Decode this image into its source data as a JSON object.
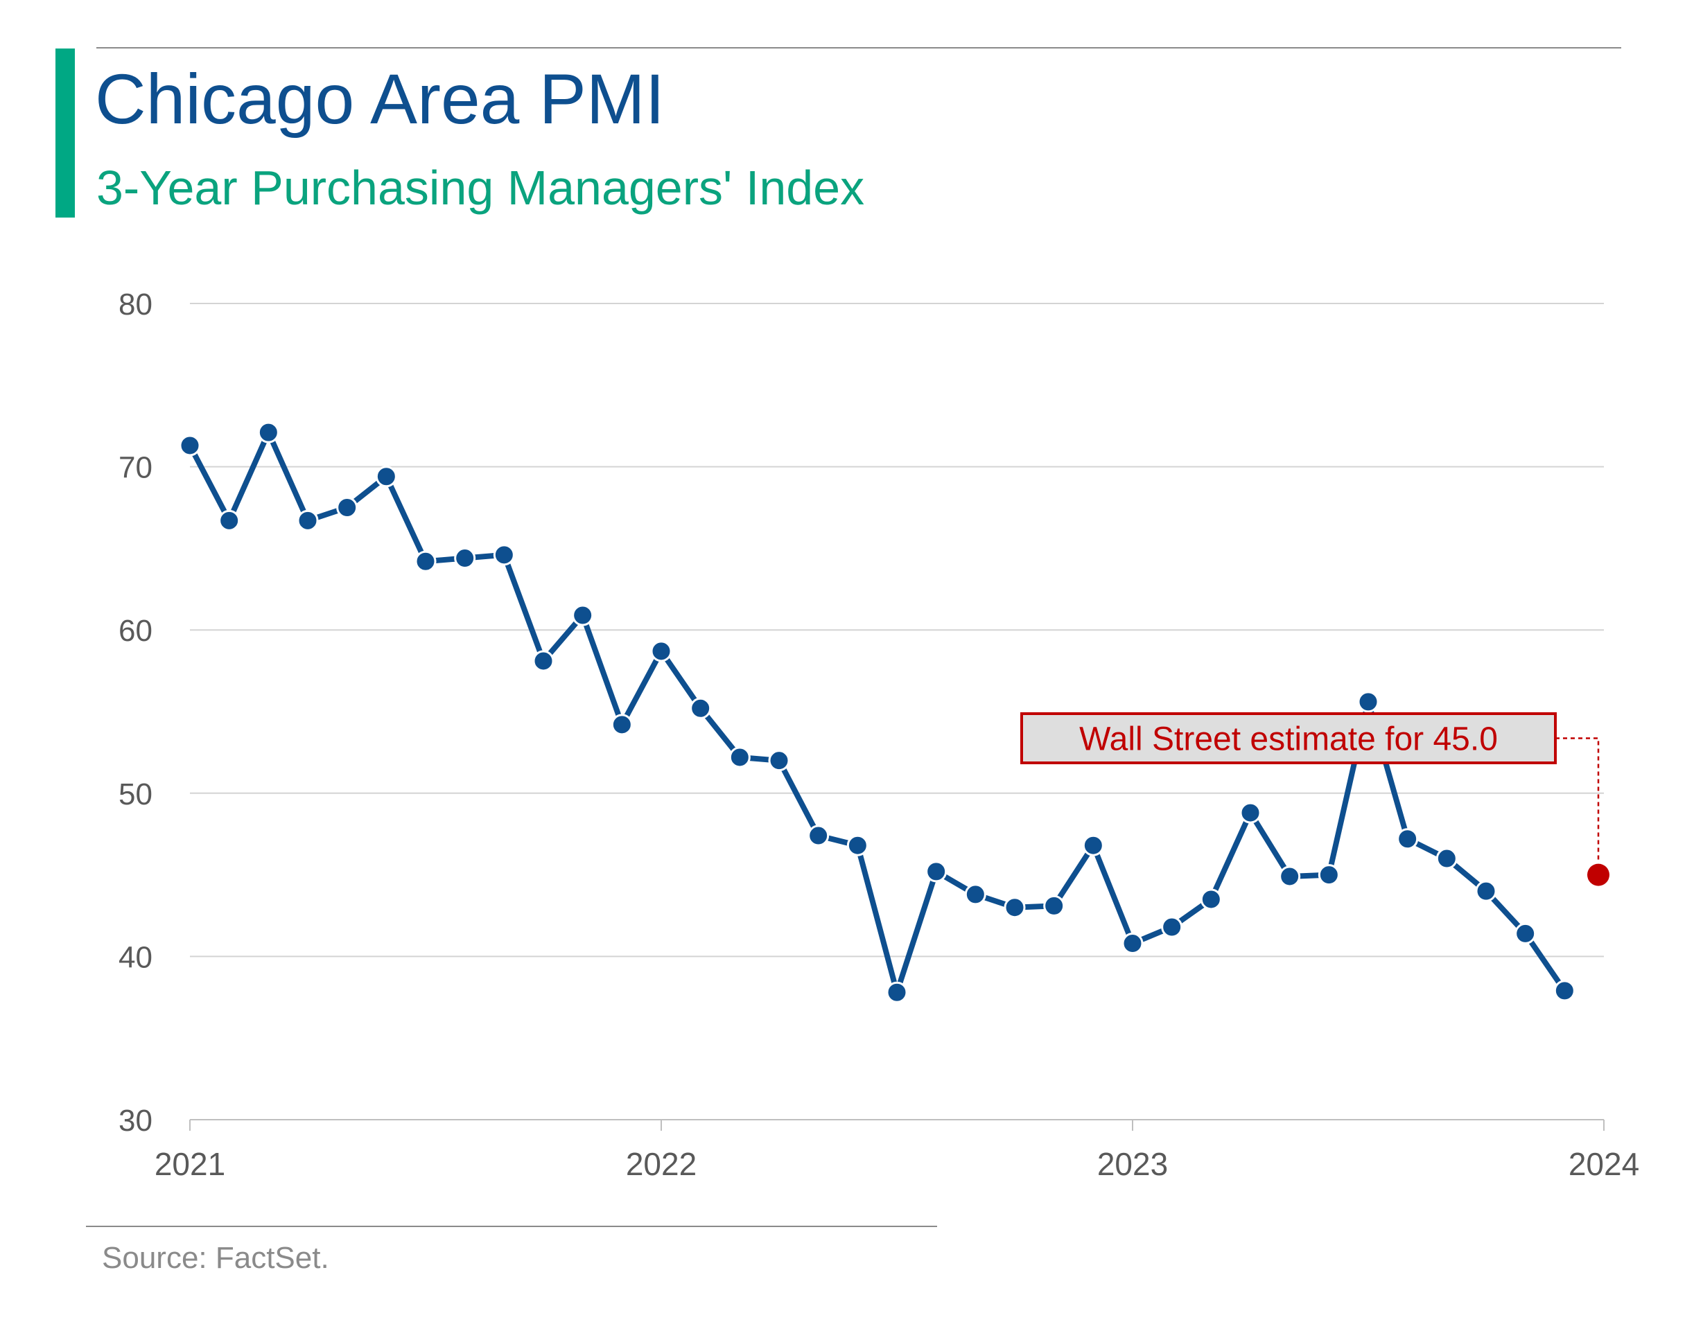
{
  "header": {
    "title": "Chicago Area PMI",
    "subtitle": "3-Year Purchasing Managers' Index"
  },
  "footer": {
    "source": "Source: FactSet."
  },
  "colors": {
    "line": "#0e4f8f",
    "accent": "#00a884",
    "subtitle": "#0aa37e",
    "estimate": "#c00000",
    "grid": "#d4d4d4",
    "axis_text": "#595959"
  },
  "chart_data": {
    "type": "line",
    "title": "Chicago Area PMI",
    "subtitle": "3-Year Purchasing Managers' Index",
    "xlabel": "",
    "ylabel": "",
    "ylim": [
      30,
      80
    ],
    "yticks": [
      30,
      40,
      50,
      60,
      70,
      80
    ],
    "xlim": [
      "2021-01",
      "2024-01"
    ],
    "xticks": [
      "2021",
      "2022",
      "2023",
      "2024"
    ],
    "grid": true,
    "series": [
      {
        "x": [
          "2021-01",
          "2021-02",
          "2021-03",
          "2021-04",
          "2021-05",
          "2021-06",
          "2021-07",
          "2021-08",
          "2021-09",
          "2021-10",
          "2021-11",
          "2021-12",
          "2022-01",
          "2022-02",
          "2022-03",
          "2022-04",
          "2022-05",
          "2022-06",
          "2022-07",
          "2022-08",
          "2022-09",
          "2022-10",
          "2022-11",
          "2022-12",
          "2023-01",
          "2023-02",
          "2023-03",
          "2023-04",
          "2023-05",
          "2023-06",
          "2023-07",
          "2023-08",
          "2023-09",
          "2023-10",
          "2023-11",
          "2023-12"
        ],
        "values": [
          71.3,
          66.7,
          72.1,
          66.7,
          67.5,
          69.4,
          64.2,
          64.4,
          64.6,
          58.1,
          60.9,
          54.2,
          58.7,
          55.2,
          52.2,
          52.0,
          47.4,
          46.8,
          37.8,
          45.2,
          43.8,
          43.0,
          43.1,
          46.8,
          40.8,
          41.8,
          43.5,
          48.8,
          44.9,
          45.0,
          55.6,
          47.2,
          46.0,
          44.0,
          41.4,
          37.9
        ]
      }
    ],
    "estimate": {
      "x": "2024-01",
      "value": 45.0,
      "label": "Wall Street estimate for 45.0"
    },
    "source": "Source: FactSet."
  }
}
